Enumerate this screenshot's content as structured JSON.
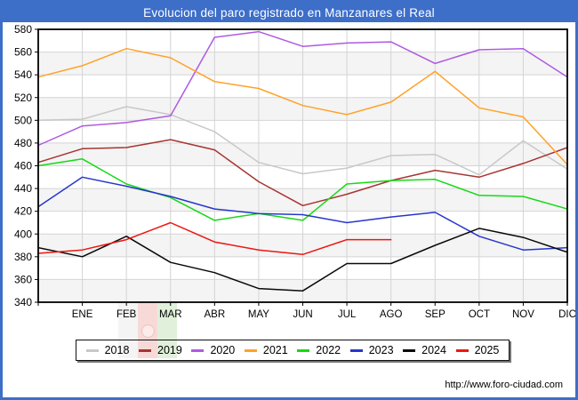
{
  "title": "Evolucion del paro registrado en Manzanares el Real",
  "footer": {
    "url": "http://www.foro-ciudad.com"
  },
  "colors": {
    "frame_blue": "#3d6ec8",
    "grid": "#d4d4d4",
    "band_gray": "#f4f4f4",
    "axis": "#000000",
    "plot_background": "#ffffff"
  },
  "chart_data": {
    "type": "line",
    "title": "Evolucion del paro registrado en Manzanares el Real",
    "xlabel": "",
    "ylabel": "",
    "x_axis": {
      "months": [
        "ENE",
        "FEB",
        "MAR",
        "ABR",
        "MAY",
        "JUN",
        "JUL",
        "AGO",
        "SEP",
        "OCT",
        "NOV",
        "DIC"
      ],
      "note": "each series has an extra first point drawn on the left plot border (before ENE)"
    },
    "y_axis": {
      "min": 340,
      "max": 580,
      "tick_step": 20,
      "ticks": [
        580,
        560,
        540,
        520,
        500,
        480,
        460,
        440,
        420,
        400,
        380,
        360,
        340
      ]
    },
    "legend_position": "bottom",
    "series": [
      {
        "name": "2018",
        "color": "#c8c8c8",
        "values": [
          500,
          501,
          512,
          505,
          490,
          463,
          453,
          458,
          469,
          470,
          452,
          482,
          457
        ]
      },
      {
        "name": "2019",
        "color": "#a83430",
        "values": [
          463,
          475,
          476,
          483,
          474,
          446,
          425,
          435,
          447,
          456,
          450,
          462,
          476
        ]
      },
      {
        "name": "2020",
        "color": "#ae5ae0",
        "values": [
          478,
          495,
          498,
          504,
          573,
          578,
          565,
          568,
          569,
          550,
          562,
          563,
          538
        ]
      },
      {
        "name": "2021",
        "color": "#ffa228",
        "values": [
          538,
          548,
          563,
          555,
          534,
          528,
          513,
          505,
          516,
          543,
          511,
          503,
          461
        ]
      },
      {
        "name": "2022",
        "color": "#16d916",
        "values": [
          460,
          466,
          444,
          432,
          412,
          418,
          412,
          444,
          447,
          448,
          434,
          433,
          422
        ]
      },
      {
        "name": "2023",
        "color": "#2636cc",
        "values": [
          424,
          450,
          442,
          433,
          422,
          418,
          417,
          410,
          415,
          419,
          398,
          386,
          388
        ]
      },
      {
        "name": "2024",
        "color": "#0a0a0a",
        "values": [
          388,
          380,
          398,
          375,
          366,
          352,
          350,
          374,
          374,
          390,
          405,
          397,
          384
        ]
      },
      {
        "name": "2025",
        "color": "#ee1611",
        "values": [
          383,
          386,
          395,
          410,
          393,
          386,
          382,
          395,
          395
        ]
      }
    ]
  },
  "watermark": {
    "description": "faint municipal flag (gray / red with emblem / green)"
  }
}
